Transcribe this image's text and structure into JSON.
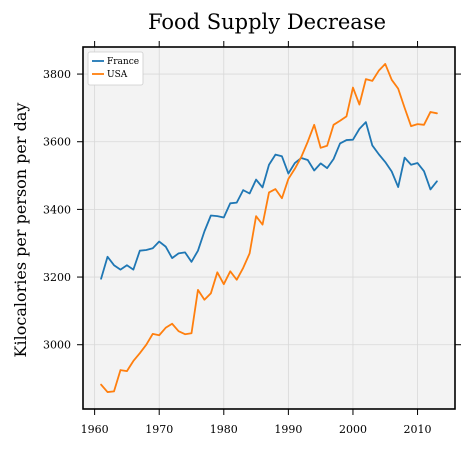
{
  "chart_data": {
    "type": "line",
    "title": "Food Supply Decrease",
    "xlabel": "",
    "ylabel": "Kilocalories per person per day",
    "xlim": [
      1958.2,
      2015.8
    ],
    "ylim": [
      2810,
      3880
    ],
    "xticks": [
      1960,
      1970,
      1980,
      1990,
      2000,
      2010
    ],
    "yticks": [
      3000,
      3200,
      3400,
      3600,
      3800
    ],
    "grid": true,
    "legend_position": "top-left",
    "x": [
      1961,
      1962,
      1963,
      1964,
      1965,
      1966,
      1967,
      1968,
      1969,
      1970,
      1971,
      1972,
      1973,
      1974,
      1975,
      1976,
      1977,
      1978,
      1979,
      1980,
      1981,
      1982,
      1983,
      1984,
      1985,
      1986,
      1987,
      1988,
      1989,
      1990,
      1991,
      1992,
      1993,
      1994,
      1995,
      1996,
      1997,
      1998,
      1999,
      2000,
      2001,
      2002,
      2003,
      2004,
      2005,
      2006,
      2007,
      2008,
      2009,
      2010,
      2011,
      2012,
      2013
    ],
    "series": [
      {
        "name": "France",
        "color": "#1f77b4",
        "values": [
          3195,
          3260,
          3235,
          3222,
          3235,
          3222,
          3278,
          3280,
          3285,
          3305,
          3290,
          3256,
          3270,
          3273,
          3245,
          3278,
          3335,
          3382,
          3380,
          3376,
          3418,
          3420,
          3457,
          3447,
          3488,
          3465,
          3532,
          3562,
          3557,
          3506,
          3537,
          3552,
          3546,
          3515,
          3536,
          3522,
          3549,
          3595,
          3605,
          3606,
          3638,
          3658,
          3589,
          3563,
          3540,
          3512,
          3466,
          3553,
          3532,
          3537,
          3513,
          3459,
          3483
        ]
      },
      {
        "name": "USA",
        "color": "#ff7f0e",
        "values": [
          2882,
          2860,
          2862,
          2925,
          2922,
          2952,
          2975,
          3000,
          3032,
          3028,
          3050,
          3062,
          3040,
          3031,
          3034,
          3162,
          3133,
          3152,
          3214,
          3179,
          3217,
          3192,
          3227,
          3270,
          3380,
          3355,
          3450,
          3460,
          3433,
          3490,
          3520,
          3555,
          3600,
          3650,
          3582,
          3588,
          3650,
          3662,
          3675,
          3760,
          3710,
          3785,
          3780,
          3810,
          3830,
          3783,
          3757,
          3700,
          3646,
          3652,
          3650,
          3688,
          3684
        ]
      }
    ]
  }
}
